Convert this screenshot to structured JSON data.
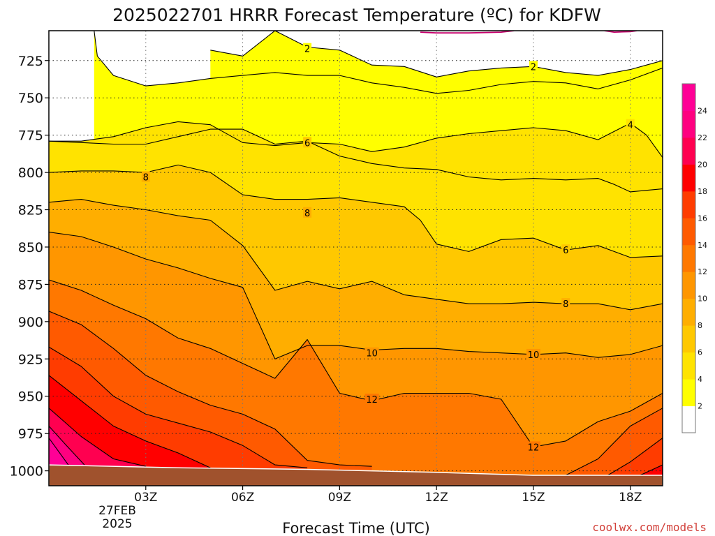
{
  "chart_data": {
    "type": "contour",
    "title": "2025022701 HRRR Forecast Temperature (ºC) for KDFW",
    "xlabel": "Forecast Time (UTC)",
    "ylabel": "",
    "credit": "coolwx.com/models",
    "x_ticks": [
      "03Z",
      "06Z",
      "09Z",
      "12Z",
      "15Z",
      "18Z"
    ],
    "x_hours": [
      3,
      6,
      9,
      12,
      15,
      18
    ],
    "x_range_hours": [
      0,
      19
    ],
    "date_label": [
      "27FEB",
      "2025"
    ],
    "y_ticks": [
      725,
      750,
      775,
      800,
      825,
      850,
      875,
      900,
      925,
      950,
      975,
      1000
    ],
    "y_range_hPa": [
      705,
      1010
    ],
    "colorbar": {
      "labels": [
        "2",
        "4",
        "6",
        "8",
        "10",
        "12",
        "14",
        "16",
        "18",
        "20",
        "22",
        "24"
      ],
      "bins": [
        {
          "lo": 0,
          "hi": 2,
          "color": "#ffffff"
        },
        {
          "lo": 2,
          "hi": 4,
          "color": "#ffff00"
        },
        {
          "lo": 4,
          "hi": 6,
          "color": "#ffe300"
        },
        {
          "lo": 6,
          "hi": 8,
          "color": "#ffc800"
        },
        {
          "lo": 8,
          "hi": 10,
          "color": "#ffae00"
        },
        {
          "lo": 10,
          "hi": 12,
          "color": "#ff9600"
        },
        {
          "lo": 12,
          "hi": 14,
          "color": "#ff7800"
        },
        {
          "lo": 14,
          "hi": 16,
          "color": "#ff5a00"
        },
        {
          "lo": 16,
          "hi": 18,
          "color": "#ff3c00"
        },
        {
          "lo": 18,
          "hi": 20,
          "color": "#ff0000"
        },
        {
          "lo": 20,
          "hi": 22,
          "color": "#ff0050"
        },
        {
          "lo": 22,
          "hi": 24,
          "color": "#ff0080"
        },
        {
          "lo": 24,
          "hi": 26,
          "color": "#ff0096"
        }
      ]
    },
    "ground_color": "#a0522d",
    "ground_pressure": [
      [
        0,
        996
      ],
      [
        4,
        998
      ],
      [
        8,
        999
      ],
      [
        12,
        1001
      ],
      [
        15,
        1003
      ],
      [
        19,
        1003
      ]
    ],
    "contours": [
      {
        "value": 2,
        "label": "2",
        "label_at": [
          [
            8,
            717
          ],
          [
            15,
            729
          ]
        ],
        "points": [
          [
            1.4,
            705
          ],
          [
            1.5,
            722
          ],
          [
            2,
            735
          ],
          [
            3,
            742
          ],
          [
            4,
            740
          ],
          [
            5,
            737
          ],
          [
            6,
            735
          ],
          [
            7,
            733
          ],
          [
            8,
            735
          ],
          [
            9,
            735
          ],
          [
            10,
            740
          ],
          [
            11,
            743
          ],
          [
            12,
            747
          ],
          [
            13,
            745
          ],
          [
            14,
            741
          ],
          [
            15,
            739
          ],
          [
            16,
            740
          ],
          [
            17,
            744
          ],
          [
            18,
            738
          ],
          [
            19,
            730
          ]
        ]
      },
      {
        "value": 2,
        "label": "",
        "label_at": [],
        "points": [
          [
            5,
            718
          ],
          [
            6,
            722
          ],
          [
            7,
            705
          ],
          [
            8,
            716
          ],
          [
            9,
            718
          ],
          [
            10,
            728
          ],
          [
            11,
            729
          ],
          [
            12,
            736
          ],
          [
            13,
            732
          ],
          [
            14,
            730
          ],
          [
            15,
            729
          ],
          [
            16,
            733
          ],
          [
            17,
            735
          ],
          [
            18,
            731
          ],
          [
            18.5,
            728
          ],
          [
            19,
            725
          ]
        ]
      },
      {
        "value": 4,
        "label": "4",
        "label_at": [
          [
            18,
            768
          ]
        ],
        "points": [
          [
            0,
            779
          ],
          [
            1,
            780
          ],
          [
            2,
            781
          ],
          [
            3,
            781
          ],
          [
            4,
            776
          ],
          [
            5,
            771
          ],
          [
            6,
            771
          ],
          [
            7,
            781
          ],
          [
            8,
            779
          ],
          [
            9,
            789
          ],
          [
            10,
            794
          ],
          [
            11,
            797
          ],
          [
            12,
            798
          ],
          [
            13,
            803
          ],
          [
            14,
            805
          ],
          [
            15,
            804
          ],
          [
            16,
            805
          ],
          [
            17,
            804
          ],
          [
            17.5,
            808
          ],
          [
            18,
            813
          ],
          [
            18.5,
            812
          ],
          [
            19,
            811
          ]
        ]
      },
      {
        "value": 4,
        "label": "",
        "label_at": [],
        "points": [
          [
            0,
            779
          ],
          [
            1,
            779
          ],
          [
            2,
            776
          ],
          [
            3,
            770
          ],
          [
            4,
            766
          ],
          [
            5,
            768
          ],
          [
            6,
            780
          ],
          [
            7,
            782
          ],
          [
            8,
            780
          ],
          [
            9,
            781
          ],
          [
            10,
            786
          ],
          [
            11,
            783
          ],
          [
            12,
            777
          ],
          [
            13,
            774
          ],
          [
            14,
            772
          ],
          [
            15,
            770
          ],
          [
            16,
            772
          ],
          [
            17,
            778
          ],
          [
            18,
            767
          ],
          [
            18.5,
            775
          ],
          [
            19,
            790
          ]
        ]
      },
      {
        "value": 6,
        "label": "6",
        "label_at": [
          [
            8,
            780
          ],
          [
            16,
            852
          ]
        ],
        "points": [
          [
            0,
            800
          ],
          [
            1,
            799
          ],
          [
            2,
            799
          ],
          [
            3,
            800
          ],
          [
            4,
            795
          ],
          [
            5,
            800
          ],
          [
            6,
            815
          ],
          [
            7,
            818
          ],
          [
            8,
            818
          ],
          [
            9,
            817
          ],
          [
            10,
            820
          ],
          [
            11,
            823
          ],
          [
            11.5,
            832
          ],
          [
            12,
            848
          ],
          [
            13,
            853
          ],
          [
            14,
            845
          ],
          [
            15,
            844
          ],
          [
            16,
            852
          ],
          [
            17,
            849
          ],
          [
            18,
            857
          ],
          [
            19,
            856
          ]
        ]
      },
      {
        "value": 8,
        "label": "8",
        "label_at": [
          [
            3,
            803
          ],
          [
            8,
            827
          ],
          [
            16,
            888
          ]
        ],
        "points": [
          [
            0,
            820
          ],
          [
            1,
            818
          ],
          [
            2,
            822
          ],
          [
            3,
            825
          ],
          [
            4,
            829
          ],
          [
            5,
            832
          ],
          [
            6,
            849
          ],
          [
            7,
            879
          ],
          [
            8,
            873
          ],
          [
            9,
            878
          ],
          [
            10,
            873
          ],
          [
            11,
            882
          ],
          [
            12,
            885
          ],
          [
            13,
            888
          ],
          [
            14,
            888
          ],
          [
            15,
            887
          ],
          [
            16,
            888
          ],
          [
            17,
            888
          ],
          [
            18,
            892
          ],
          [
            19,
            888
          ]
        ]
      },
      {
        "value": 10,
        "label": "10",
        "label_at": [
          [
            10,
            921
          ],
          [
            15,
            922
          ]
        ],
        "points": [
          [
            0,
            840
          ],
          [
            1,
            843
          ],
          [
            2,
            850
          ],
          [
            3,
            858
          ],
          [
            4,
            864
          ],
          [
            5,
            871
          ],
          [
            6,
            877
          ],
          [
            7,
            925
          ],
          [
            8,
            916
          ],
          [
            9,
            916
          ],
          [
            10,
            919
          ],
          [
            11,
            918
          ],
          [
            12,
            918
          ],
          [
            13,
            920
          ],
          [
            14,
            921
          ],
          [
            15,
            922
          ],
          [
            16,
            921
          ],
          [
            17,
            924
          ],
          [
            18,
            922
          ],
          [
            19,
            916
          ]
        ]
      },
      {
        "value": 12,
        "label": "12",
        "label_at": [
          [
            10,
            952
          ],
          [
            15,
            984
          ]
        ],
        "points": [
          [
            0,
            872
          ],
          [
            1,
            879
          ],
          [
            2,
            889
          ],
          [
            3,
            898
          ],
          [
            4,
            911
          ],
          [
            5,
            918
          ],
          [
            6,
            928
          ],
          [
            7,
            938
          ],
          [
            8,
            912
          ],
          [
            9,
            948
          ],
          [
            10,
            953
          ],
          [
            11,
            948
          ],
          [
            12,
            948
          ],
          [
            13,
            948
          ],
          [
            14,
            952
          ],
          [
            15,
            984
          ],
          [
            16,
            980
          ],
          [
            17,
            967
          ],
          [
            18,
            960
          ],
          [
            19,
            948
          ]
        ]
      },
      {
        "value": 14,
        "label": "",
        "label_at": [],
        "points": [
          [
            0,
            893
          ],
          [
            1,
            902
          ],
          [
            2,
            918
          ],
          [
            3,
            936
          ],
          [
            4,
            947
          ],
          [
            5,
            956
          ],
          [
            6,
            962
          ],
          [
            7,
            972
          ],
          [
            8,
            993
          ],
          [
            9,
            996
          ],
          [
            10,
            997
          ]
        ]
      },
      {
        "value": 14,
        "label": "",
        "label_at": [],
        "points": [
          [
            16,
            1003
          ],
          [
            17,
            992
          ],
          [
            18,
            970
          ],
          [
            19,
            958
          ]
        ]
      },
      {
        "value": 16,
        "label": "",
        "label_at": [],
        "points": [
          [
            0,
            917
          ],
          [
            1,
            930
          ],
          [
            2,
            950
          ],
          [
            3,
            962
          ],
          [
            4,
            968
          ],
          [
            5,
            974
          ],
          [
            6,
            983
          ],
          [
            7,
            996
          ],
          [
            8,
            998
          ]
        ]
      },
      {
        "value": 16,
        "label": "",
        "label_at": [],
        "points": [
          [
            17.3,
            1003
          ],
          [
            18,
            994
          ],
          [
            19,
            978
          ]
        ]
      },
      {
        "value": 18,
        "label": "",
        "label_at": [],
        "points": [
          [
            0,
            936
          ],
          [
            1,
            953
          ],
          [
            2,
            970
          ],
          [
            3,
            980
          ],
          [
            4,
            988
          ],
          [
            5,
            998
          ]
        ]
      },
      {
        "value": 18,
        "label": "",
        "label_at": [],
        "points": [
          [
            18.3,
            1003
          ],
          [
            19,
            996
          ]
        ]
      },
      {
        "value": 20,
        "label": "",
        "label_at": [],
        "points": [
          [
            0,
            958
          ],
          [
            1,
            977
          ],
          [
            2,
            992
          ],
          [
            3,
            997
          ]
        ]
      },
      {
        "value": 22,
        "label": "",
        "label_at": [],
        "points": [
          [
            0,
            970
          ],
          [
            0.5,
            982
          ],
          [
            1.1,
            996
          ]
        ]
      },
      {
        "value": 24,
        "label": "",
        "label_at": [],
        "points": [
          [
            0,
            978
          ],
          [
            0.6,
            996
          ]
        ]
      },
      {
        "value": 0,
        "label": "",
        "label_at": [],
        "points": [
          [
            11.5,
            706
          ],
          [
            12,
            706.5
          ],
          [
            13,
            706.5
          ],
          [
            14,
            706
          ],
          [
            14.4,
            705
          ]
        ]
      },
      {
        "value": 0,
        "label": "",
        "label_at": [],
        "points": [
          [
            17.2,
            705
          ],
          [
            17.5,
            706
          ],
          [
            18,
            705.6
          ],
          [
            18.2,
            705
          ]
        ]
      }
    ]
  }
}
